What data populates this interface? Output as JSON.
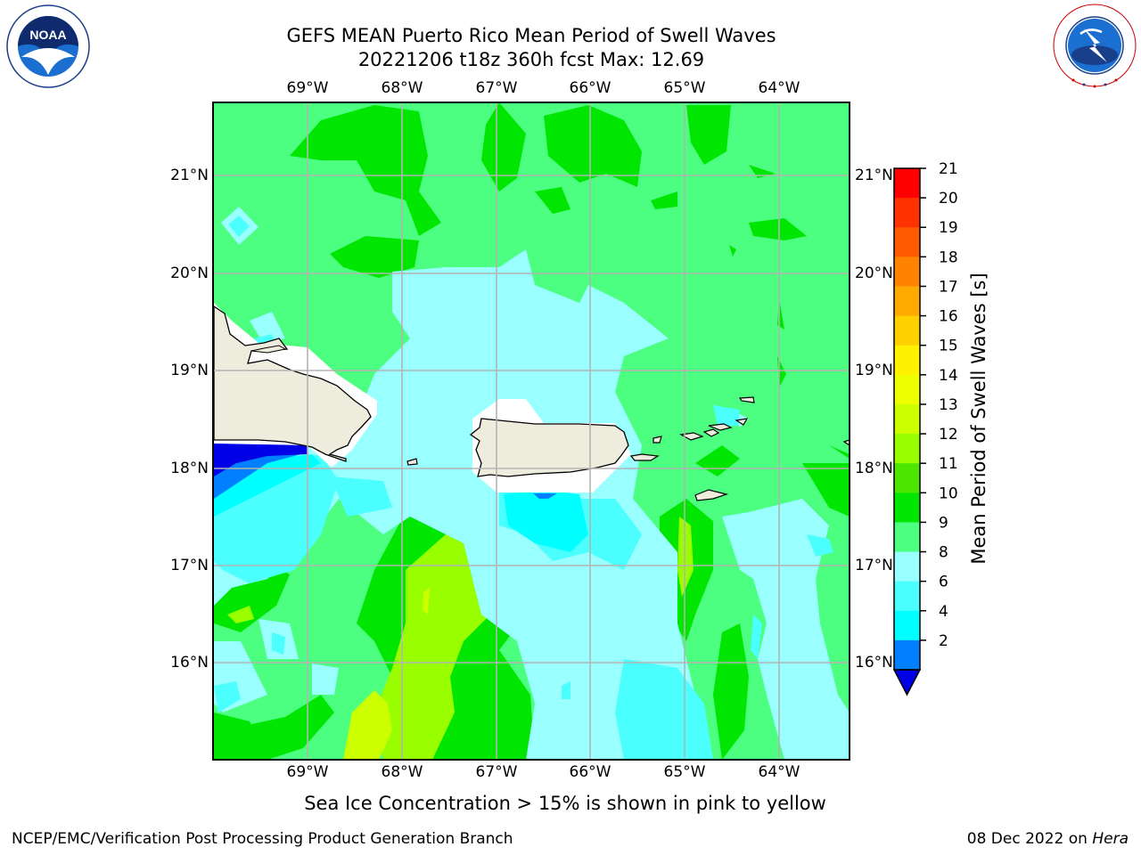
{
  "header": {
    "title_line1": "GEFS MEAN Puerto Rico Mean Period of Swell Waves",
    "title_line2": "20221206 t18z 360h fcst   Max: 12.69",
    "left_logo": "noaa-logo",
    "right_logo": "nws-logo",
    "noaa_logo_text": "NOAA",
    "noaa_ring_text": "NATIONAL OCEANIC AND ATMOSPHERIC ADMINISTRATION · U.S. DEPARTMENT OF COMMERCE",
    "nws_ring_text": "NATIONAL WEATHER SERVICE"
  },
  "map": {
    "lon_labels": [
      "69°W",
      "68°W",
      "67°W",
      "66°W",
      "65°W",
      "64°W"
    ],
    "lat_labels": [
      "21°N",
      "20°N",
      "19°N",
      "18°N",
      "17°N",
      "16°N"
    ],
    "colors": {
      "ocean_base": "#4cff80",
      "land": "#eeecdc",
      "grid": "#b3b3b3"
    }
  },
  "colorbar": {
    "label": "Mean Period of Swell Waves [s]",
    "ticks": [
      "21",
      "20",
      "19",
      "18",
      "17",
      "16",
      "15",
      "14",
      "13",
      "12",
      "11",
      "10",
      "9",
      "8",
      "6",
      "4",
      "2"
    ],
    "colors_top_to_bottom": [
      "#ff0000",
      "#ff3300",
      "#ff5a00",
      "#ff8200",
      "#ffaa00",
      "#ffd000",
      "#fff200",
      "#eeff00",
      "#ccff00",
      "#99ff00",
      "#4ce600",
      "#00e600",
      "#4cff80",
      "#99ffff",
      "#4cffff",
      "#00ffff",
      "#0080ff"
    ],
    "under_color": "#0000e6"
  },
  "footer": {
    "note": "Sea Ice Concentration > 15% is shown in pink to yellow",
    "left": "NCEP/EMC/Verification Post Processing Product Generation Branch",
    "right_date": "08 Dec 2022 on ",
    "right_host": "Hera"
  }
}
